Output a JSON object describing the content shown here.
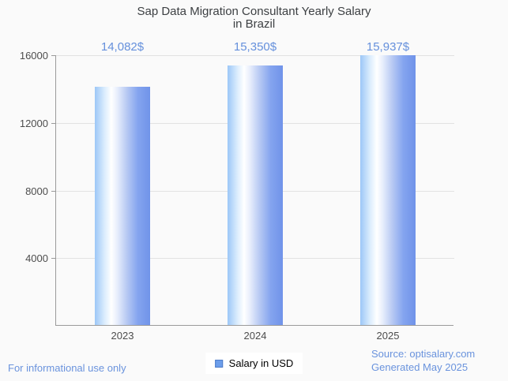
{
  "page": {
    "background_color": "#fafafa"
  },
  "title": {
    "line1": "Sap Data Migration Consultant Yearly Salary",
    "line2": "in Brazil",
    "color": "#3d4043"
  },
  "chart_data": {
    "type": "bar",
    "title": "Sap Data Migration Consultant Yearly Salary in Brazil",
    "categories": [
      "2023",
      "2024",
      "2025"
    ],
    "values": [
      14082,
      15350,
      15937
    ],
    "value_labels": [
      "14,082$",
      "15,350$",
      "15,937$"
    ],
    "series_name": "Salary in USD",
    "xlabel": "",
    "ylabel": "",
    "ylim": [
      0,
      16000
    ],
    "yticks": [
      4000,
      8000,
      12000,
      16000
    ],
    "grid": true,
    "legend_position": "bottom-center",
    "bar_gradient": [
      "#9cc7f7",
      "#ffffff",
      "#7093e9"
    ],
    "value_label_color": "#6590dc",
    "axis_color": "#9a9a9a",
    "gridline_color": "#e2e2e2",
    "tick_label_color": "#4d4d4d"
  },
  "legend": {
    "label": "Salary in USD",
    "marker_fill": "#6d9eeb",
    "marker_border": "#4d7cc9"
  },
  "footer": {
    "disclaimer": "For informational use only",
    "source": "Source: optisalary.com",
    "generated": "Generated May 2025",
    "color": "#6a93dd"
  }
}
